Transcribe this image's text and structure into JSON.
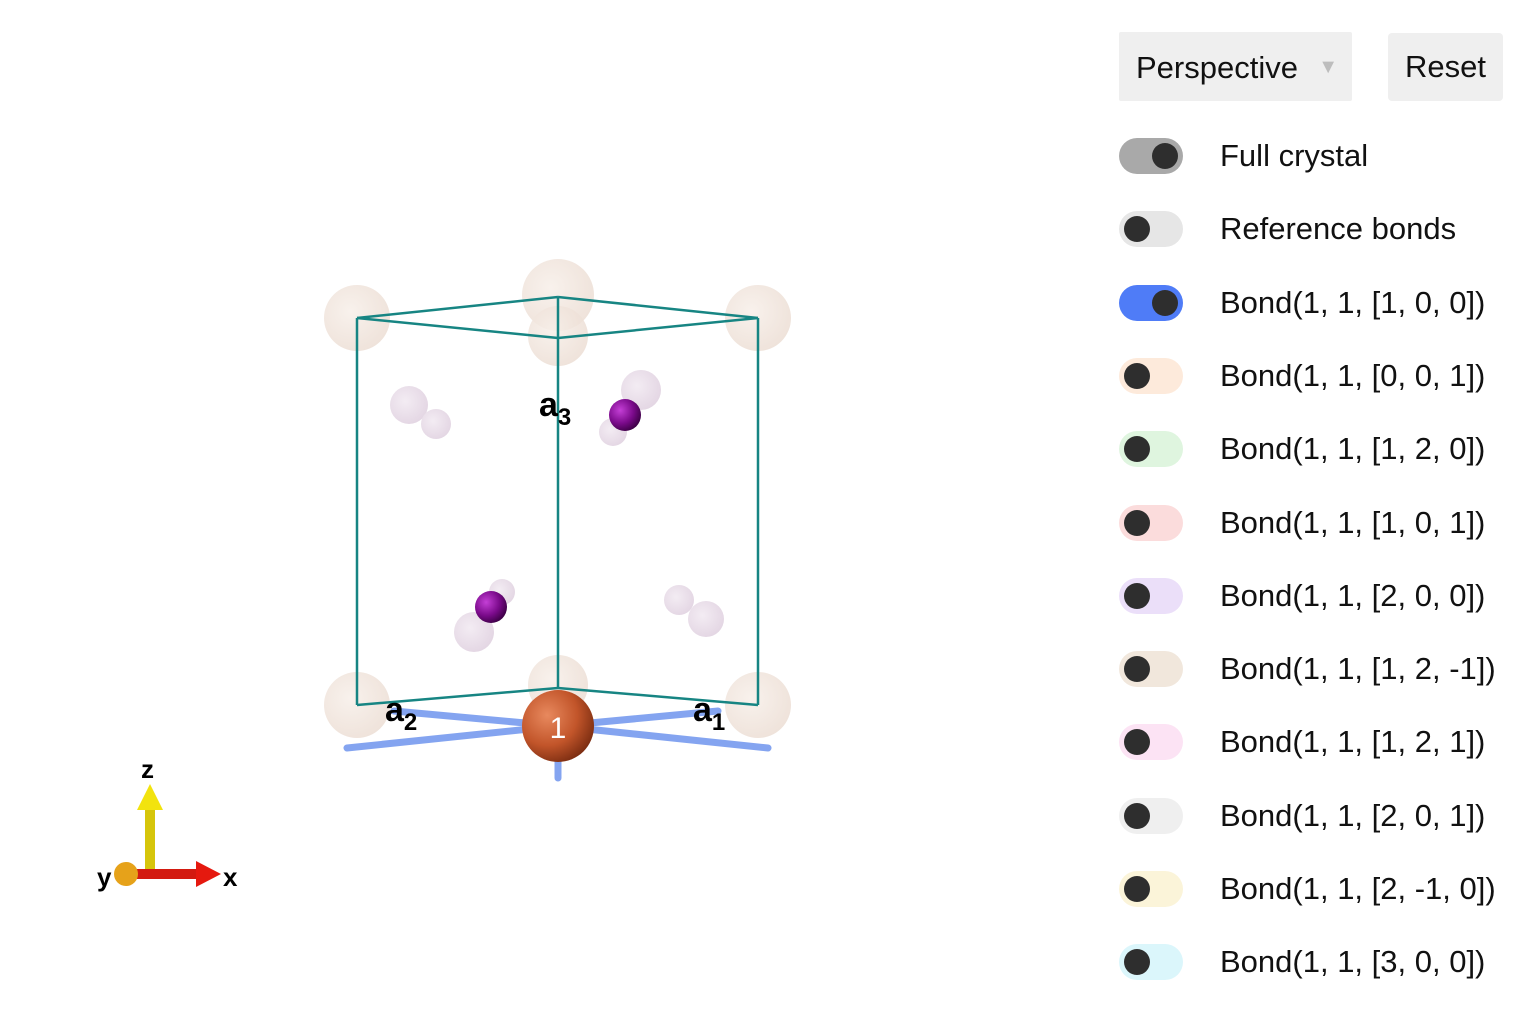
{
  "controls": {
    "projection": "Perspective",
    "reset_label": "Reset"
  },
  "toggles": [
    {
      "label": "Full crystal",
      "on": true,
      "color": "#a9a9a9"
    },
    {
      "label": "Reference bonds",
      "on": false,
      "color": "#e6e6e6"
    },
    {
      "label": "Bond(1, 1, [1, 0, 0])",
      "on": true,
      "color": "#4f7cf7"
    },
    {
      "label": "Bond(1, 1, [0, 0, 1])",
      "on": false,
      "color": "#fdeadb"
    },
    {
      "label": "Bond(1, 1, [1, 2, 0])",
      "on": false,
      "color": "#dff5df"
    },
    {
      "label": "Bond(1, 1, [1, 0, 1])",
      "on": false,
      "color": "#fbdcdc"
    },
    {
      "label": "Bond(1, 1, [2, 0, 0])",
      "on": false,
      "color": "#ebdff9"
    },
    {
      "label": "Bond(1, 1, [1, 2, -1])",
      "on": false,
      "color": "#f1e7dc"
    },
    {
      "label": "Bond(1, 1, [1, 2, 1])",
      "on": false,
      "color": "#fce3f4"
    },
    {
      "label": "Bond(1, 1, [2, 0, 1])",
      "on": false,
      "color": "#efefef"
    },
    {
      "label": "Bond(1, 1, [2, -1, 0])",
      "on": false,
      "color": "#fbf4d9"
    },
    {
      "label": "Bond(1, 1, [3, 0, 0])",
      "on": false,
      "color": "#dbf6fb"
    }
  ],
  "scene": {
    "lattice_labels": {
      "a1": "a",
      "a1_sub": "1",
      "a2": "a",
      "a2_sub": "2",
      "a3": "a",
      "a3_sub": "3"
    },
    "site_label": "1",
    "axes": {
      "x": "x",
      "y": "y",
      "z": "z"
    },
    "colors": {
      "cell": "#178583",
      "site": "#c2552a",
      "atom": "#7a0a8a",
      "ghost_atom": "#e8dfe8",
      "ghost_site": "#f1e6e0",
      "bond": "#6f95ee"
    }
  }
}
